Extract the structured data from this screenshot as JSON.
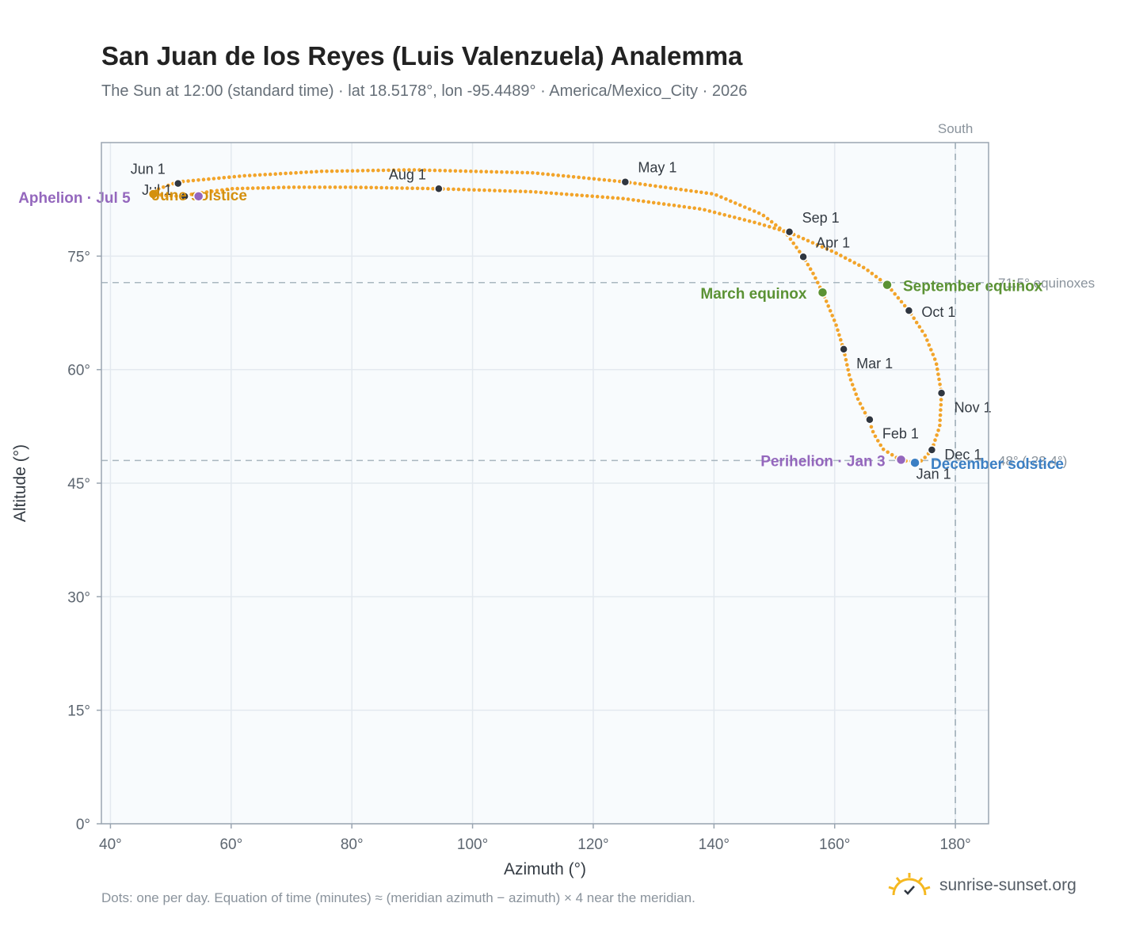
{
  "header": {
    "title": "San Juan de los Reyes (Luis Valenzuela) Analemma",
    "subtitle": "The Sun at 12:00 (standard time) · lat 18.5178°, lon -95.4489° · America/Mexico_City · 2026"
  },
  "footer": {
    "note": "Dots: one per day. Equation of time (minutes) ≈ (meridian azimuth − azimuth) × 4 near the meridian.",
    "brand": "sunrise-sunset.org"
  },
  "colors": {
    "path": "#f2a42a",
    "month_dot": "#2f3640",
    "equinox": "#5b9234",
    "solstice_december": "#3b7fc4",
    "solstice_june": "#d4900e",
    "apsis": "#9467bd",
    "plot_bg": "#f8fbfd",
    "grid": "#e3e9ef",
    "axis": "#9aa5b1"
  },
  "chart_data": {
    "type": "scatter",
    "xlabel": "Azimuth (°)",
    "ylabel": "Altitude (°)",
    "xlim": [
      38.5,
      185.5
    ],
    "ylim": [
      0,
      90
    ],
    "x_ticks": [
      40,
      60,
      80,
      100,
      120,
      140,
      160,
      180
    ],
    "x_tick_labels": [
      "40°",
      "60°",
      "80°",
      "100°",
      "120°",
      "140°",
      "160°",
      "180°"
    ],
    "y_ticks": [
      0,
      15,
      30,
      45,
      60,
      75
    ],
    "y_tick_labels": [
      "0°",
      "15°",
      "30°",
      "45°",
      "60°",
      "75°"
    ],
    "grid": true,
    "reference_lines": [
      {
        "axis": "x",
        "value": 180,
        "label": "South"
      },
      {
        "axis": "y",
        "value": 71.5,
        "label": "71.5° equinoxes"
      },
      {
        "axis": "y",
        "value": 48,
        "label": "48° (-23.4°)"
      }
    ],
    "series": [
      {
        "style": "daily dots",
        "points": [
          [
            173.5,
            47.8
          ],
          [
            171.0,
            48.0
          ],
          [
            168.0,
            49.5
          ],
          [
            166.5,
            51.5
          ],
          [
            165.6,
            53.4
          ],
          [
            163.8,
            56.2
          ],
          [
            162.5,
            59.0
          ],
          [
            161.5,
            62.6
          ],
          [
            160.2,
            66.0
          ],
          [
            158.0,
            70.2
          ],
          [
            156.5,
            72.6
          ],
          [
            154.8,
            74.9
          ],
          [
            152.0,
            78.0
          ],
          [
            148.0,
            80.5
          ],
          [
            140.0,
            83.2
          ],
          [
            125.3,
            84.8
          ],
          [
            110.0,
            86.0
          ],
          [
            90.0,
            86.4
          ],
          [
            75.0,
            86.2
          ],
          [
            62.0,
            85.6
          ],
          [
            51.2,
            84.8
          ],
          [
            47.0,
            83.6
          ],
          [
            48.0,
            83.1
          ],
          [
            51.5,
            82.9
          ],
          [
            54.5,
            83.3
          ],
          [
            60.0,
            83.9
          ],
          [
            70.0,
            84.1
          ],
          [
            80.0,
            84.1
          ],
          [
            94.4,
            83.9
          ],
          [
            110.0,
            83.5
          ],
          [
            125.0,
            82.6
          ],
          [
            138.0,
            81.2
          ],
          [
            147.0,
            79.4
          ],
          [
            152.5,
            78.1
          ],
          [
            160.0,
            75.5
          ],
          [
            165.0,
            73.4
          ],
          [
            168.7,
            71.2
          ],
          [
            172.3,
            67.8
          ],
          [
            175.0,
            64.5
          ],
          [
            176.8,
            61.0
          ],
          [
            177.7,
            56.9
          ],
          [
            177.4,
            52.5
          ],
          [
            176.1,
            49.4
          ],
          [
            174.5,
            48.0
          ],
          [
            173.5,
            47.8
          ]
        ]
      }
    ],
    "month_markers": [
      {
        "label": "Jan 1",
        "az": 173.5,
        "alt": 47.9
      },
      {
        "label": "Feb 1",
        "az": 165.8,
        "alt": 53.4
      },
      {
        "label": "Mar 1",
        "az": 161.5,
        "alt": 62.7
      },
      {
        "label": "Apr 1",
        "az": 154.8,
        "alt": 74.9
      },
      {
        "label": "May 1",
        "az": 125.3,
        "alt": 84.8
      },
      {
        "label": "Jun 1",
        "az": 51.2,
        "alt": 84.6
      },
      {
        "label": "Jul 1",
        "az": 52.3,
        "alt": 82.9
      },
      {
        "label": "Aug 1",
        "az": 94.4,
        "alt": 83.9
      },
      {
        "label": "Sep 1",
        "az": 152.5,
        "alt": 78.2
      },
      {
        "label": "Oct 1",
        "az": 172.3,
        "alt": 67.8
      },
      {
        "label": "Nov 1",
        "az": 177.7,
        "alt": 56.9
      },
      {
        "label": "Dec 1",
        "az": 176.1,
        "alt": 49.4
      }
    ],
    "events": [
      {
        "label": "March equinox",
        "az": 158.0,
        "alt": 70.2,
        "kind": "equinox"
      },
      {
        "label": "September equinox",
        "az": 168.7,
        "alt": 71.2,
        "kind": "equinox"
      },
      {
        "label": "December solstice",
        "az": 173.3,
        "alt": 47.7,
        "kind": "solstice_december"
      },
      {
        "label": "June solstice",
        "az": 47.1,
        "alt": 83.2,
        "kind": "solstice_june"
      },
      {
        "label": "Perihelion · Jan 3",
        "az": 171.0,
        "alt": 48.1,
        "kind": "apsis"
      },
      {
        "label": "Aphelion · Jul 5",
        "az": 54.6,
        "alt": 82.9,
        "kind": "apsis"
      }
    ]
  }
}
